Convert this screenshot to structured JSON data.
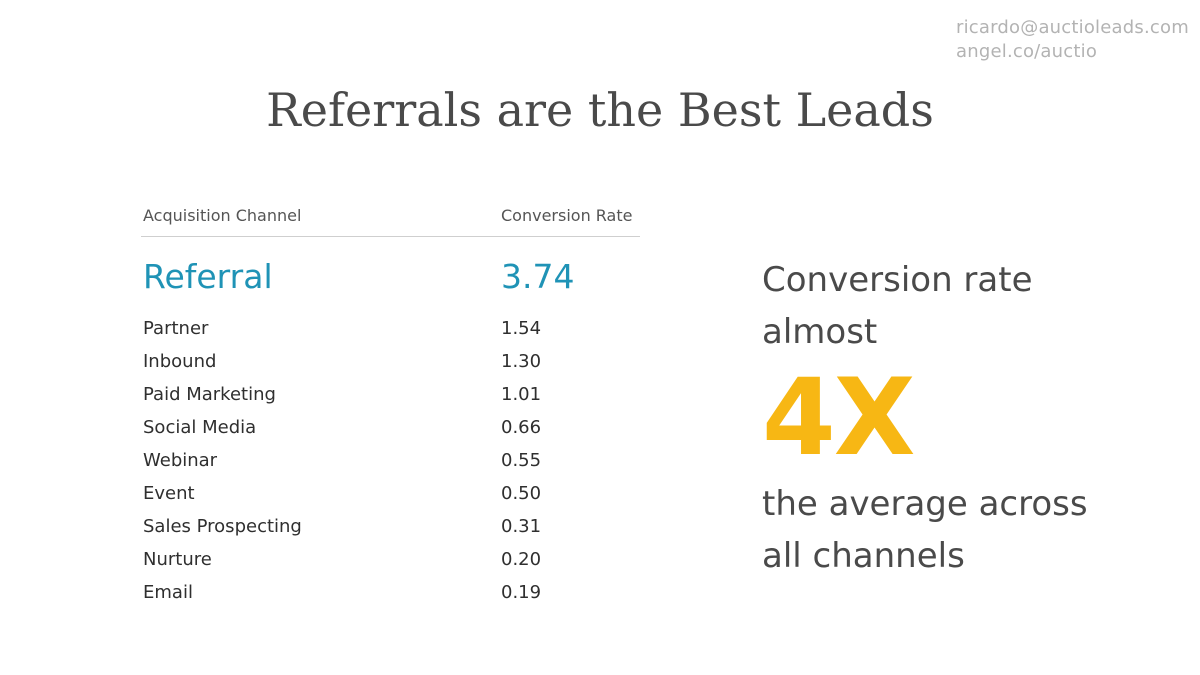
{
  "contact": {
    "email": "ricardo@auctioleads.com",
    "link": "angel.co/auctio"
  },
  "title": "Referrals are the Best Leads",
  "table": {
    "headers": {
      "channel": "Acquisition Channel",
      "rate": "Conversion Rate"
    },
    "highlight": {
      "channel": "Referral",
      "rate": "3.74"
    },
    "rows": [
      {
        "channel": "Partner",
        "rate": "1.54"
      },
      {
        "channel": "Inbound",
        "rate": "1.30"
      },
      {
        "channel": "Paid Marketing",
        "rate": "1.01"
      },
      {
        "channel": "Social Media",
        "rate": "0.66"
      },
      {
        "channel": "Webinar",
        "rate": "0.55"
      },
      {
        "channel": "Event",
        "rate": "0.50"
      },
      {
        "channel": "Sales Prospecting",
        "rate": "0.31"
      },
      {
        "channel": "Nurture",
        "rate": "0.20"
      },
      {
        "channel": "Email",
        "rate": "0.19"
      }
    ]
  },
  "callout": {
    "line1": "Conversion rate",
    "line2": "almost",
    "big": "4X",
    "line3": "the average across",
    "line4": "all channels"
  },
  "colors": {
    "highlight": "#1f93b6",
    "accent": "#f7b714",
    "text": "#4a4a4a",
    "contact": "#b3b3b3"
  }
}
